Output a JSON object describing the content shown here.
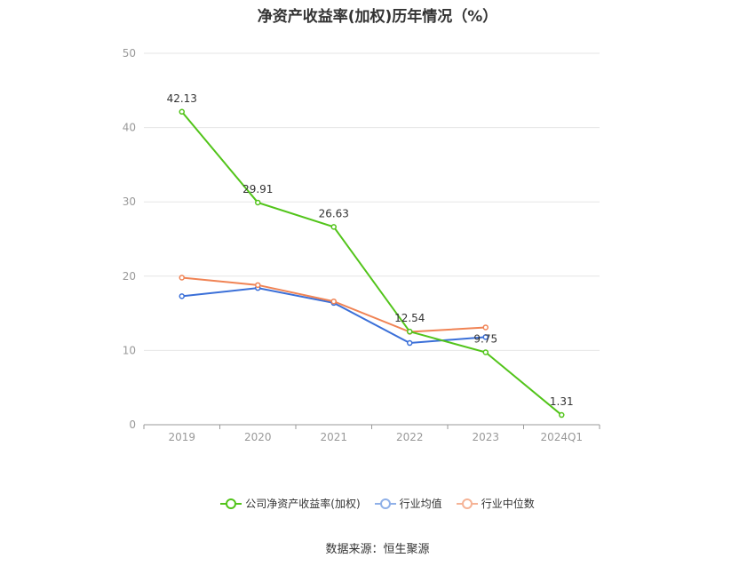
{
  "chart_data": {
    "type": "line",
    "title": "净资产收益率(加权)历年情况（%）",
    "categories": [
      "2019",
      "2020",
      "2021",
      "2022",
      "2023",
      "2024Q1"
    ],
    "ylim": [
      0,
      50
    ],
    "yticks": [
      0,
      10,
      20,
      30,
      40,
      50
    ],
    "grid": true,
    "legend_position": "bottom",
    "series": [
      {
        "name": "公司净资产收益率(加权)",
        "color": "#52c41a",
        "values": [
          42.13,
          29.91,
          26.63,
          12.54,
          9.75,
          1.31
        ],
        "labels": [
          "42.13",
          "29.91",
          "26.63",
          "12.54",
          "9.75",
          "1.31"
        ]
      },
      {
        "name": "行业均值",
        "color": "#3a6fd8",
        "values": [
          17.3,
          18.4,
          16.4,
          11.0,
          11.8,
          null
        ]
      },
      {
        "name": "行业中位数",
        "color": "#f08354",
        "values": [
          19.8,
          18.8,
          16.6,
          12.5,
          13.1,
          null
        ]
      }
    ]
  },
  "source": "数据来源：恒生聚源"
}
